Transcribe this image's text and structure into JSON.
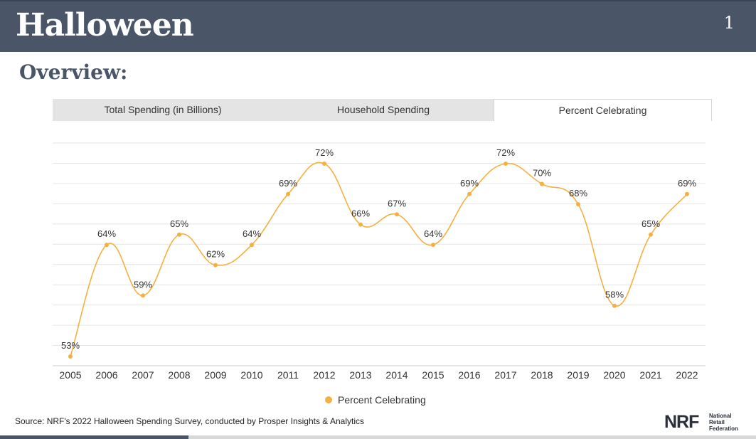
{
  "header": {
    "title": "Halloween",
    "page_number": "1"
  },
  "subtitle": "Overview:",
  "tabs": [
    {
      "label": "Total Spending (in Billions)",
      "active": false
    },
    {
      "label": "Household Spending",
      "active": false
    },
    {
      "label": "Percent Celebrating",
      "active": true
    }
  ],
  "chart_data": {
    "type": "line",
    "x": [
      "2005",
      "2006",
      "2007",
      "2008",
      "2009",
      "2010",
      "2011",
      "2012",
      "2013",
      "2014",
      "2015",
      "2016",
      "2017",
      "2018",
      "2019",
      "2020",
      "2021",
      "2022"
    ],
    "series": [
      {
        "name": "Percent Celebrating",
        "values": [
          53,
          64,
          59,
          65,
          62,
          64,
          69,
          72,
          66,
          67,
          64,
          69,
          72,
          70,
          68,
          58,
          65,
          69
        ],
        "labels": [
          "53%",
          "64%",
          "59%",
          "65%",
          "62%",
          "64%",
          "69%",
          "72%",
          "66%",
          "67%",
          "64%",
          "69%",
          "72%",
          "70%",
          "68%",
          "58%",
          "65%",
          "69%"
        ],
        "color": "#f5b041"
      }
    ],
    "ylim": [
      52,
      74
    ],
    "grid": true,
    "legend_position": "bottom"
  },
  "footer": {
    "source": "Source: NRF's 2022 Halloween Spending Survey, conducted by Prosper Insights & Analytics",
    "logo_mark": "NRF",
    "logo_line1": "National",
    "logo_line2": "Retail",
    "logo_line3": "Federation"
  },
  "colors": {
    "header_bg": "#4a5567",
    "accent": "#f5b041"
  }
}
